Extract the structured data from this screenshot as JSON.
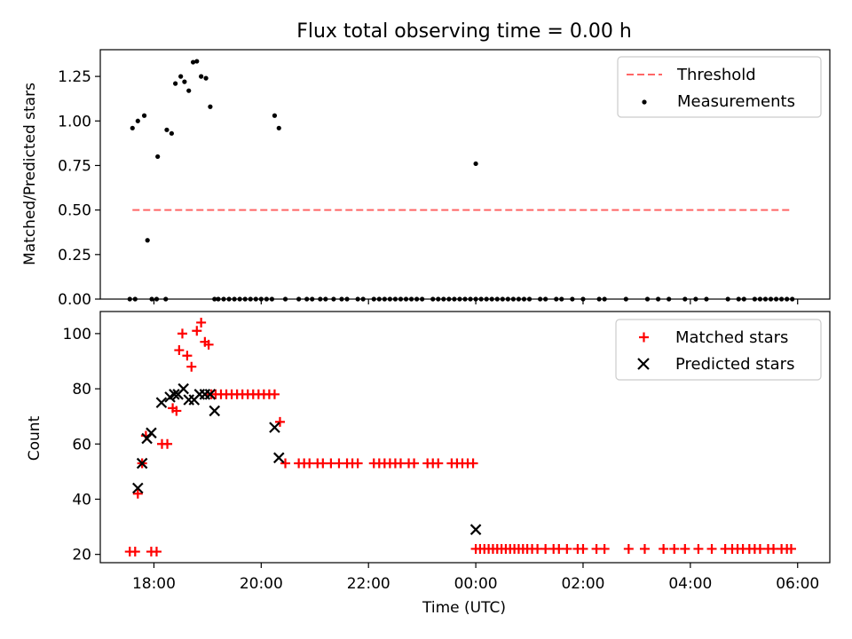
{
  "title": "Flux total observing time = 0.00 h",
  "colors": {
    "threshold": "#ff6666",
    "matched": "#ff0000",
    "predicted": "#000000",
    "measurement": "#000000"
  },
  "chart_data": [
    {
      "type": "scatter",
      "ylabel": "Matched/Predicted stars",
      "xlim": [
        17.0,
        30.6
      ],
      "ylim": [
        0.0,
        1.4
      ],
      "xticks": [
        18,
        20,
        22,
        24,
        26,
        28,
        30
      ],
      "yticks": [
        0.0,
        0.25,
        0.5,
        0.75,
        1.0,
        1.25
      ],
      "ytick_labels": [
        "0.00",
        "0.25",
        "0.50",
        "0.75",
        "1.00",
        "1.25"
      ],
      "legend": [
        "Threshold",
        "Measurements"
      ],
      "legend_position": "top-right",
      "threshold": {
        "name": "Threshold",
        "value": 0.5,
        "x_range": [
          17.6,
          29.9
        ]
      },
      "series": [
        {
          "name": "Measurements",
          "x": [
            17.6,
            17.7,
            17.82,
            17.88,
            17.96,
            18.07,
            18.24,
            18.33,
            18.4,
            18.5,
            18.57,
            18.65,
            18.73,
            18.8,
            18.88,
            18.97,
            19.05,
            19.13,
            20.25,
            20.33,
            24.0,
            17.55,
            17.65,
            18.05,
            18.22,
            19.2,
            19.3,
            19.4,
            19.5,
            19.6,
            19.7,
            19.8,
            19.9,
            20.0,
            20.1,
            20.2,
            20.45,
            20.7,
            20.85,
            20.95,
            21.1,
            21.2,
            21.35,
            21.5,
            21.6,
            21.8,
            21.9,
            22.1,
            22.2,
            22.3,
            22.4,
            22.5,
            22.6,
            22.7,
            22.8,
            22.9,
            23.0,
            23.2,
            23.3,
            23.4,
            23.5,
            23.6,
            23.7,
            23.8,
            23.9,
            24.0,
            24.1,
            24.2,
            24.3,
            24.4,
            24.5,
            24.6,
            24.7,
            24.8,
            24.9,
            25.0,
            25.2,
            25.3,
            25.5,
            25.6,
            25.8,
            26.0,
            26.3,
            26.4,
            26.8,
            27.2,
            27.4,
            27.6,
            27.9,
            28.1,
            28.3,
            28.7,
            28.9,
            29.0,
            29.2,
            29.3,
            29.4,
            29.5,
            29.6,
            29.7,
            29.8,
            29.9
          ],
          "y": [
            0.96,
            1.0,
            1.03,
            0.33,
            0.0,
            0.8,
            0.95,
            0.93,
            1.21,
            1.25,
            1.22,
            1.17,
            1.33,
            1.335,
            1.25,
            1.24,
            1.08,
            0.0,
            1.03,
            0.96,
            0.76,
            0.0,
            0.0,
            0.0,
            0.0,
            0.0,
            0.0,
            0.0,
            0.0,
            0.0,
            0.0,
            0.0,
            0.0,
            0.0,
            0.0,
            0.0,
            0.0,
            0.0,
            0.0,
            0.0,
            0.0,
            0.0,
            0.0,
            0.0,
            0.0,
            0.0,
            0.0,
            0.0,
            0.0,
            0.0,
            0.0,
            0.0,
            0.0,
            0.0,
            0.0,
            0.0,
            0.0,
            0.0,
            0.0,
            0.0,
            0.0,
            0.0,
            0.0,
            0.0,
            0.0,
            0.0,
            0.0,
            0.0,
            0.0,
            0.0,
            0.0,
            0.0,
            0.0,
            0.0,
            0.0,
            0.0,
            0.0,
            0.0,
            0.0,
            0.0,
            0.0,
            0.0,
            0.0,
            0.0,
            0.0,
            0.0,
            0.0,
            0.0,
            0.0,
            0.0,
            0.0,
            0.0,
            0.0,
            0.0,
            0.0,
            0.0,
            0.0,
            0.0,
            0.0,
            0.0,
            0.0,
            0.0
          ]
        }
      ]
    },
    {
      "type": "scatter",
      "xlabel": "Time (UTC)",
      "ylabel": "Count",
      "xlim": [
        17.0,
        30.6
      ],
      "ylim": [
        17,
        108
      ],
      "xticks": [
        18,
        20,
        22,
        24,
        26,
        28,
        30
      ],
      "xtick_labels": [
        "18:00",
        "20:00",
        "22:00",
        "00:00",
        "02:00",
        "04:00",
        "06:00"
      ],
      "yticks": [
        20,
        40,
        60,
        80,
        100
      ],
      "ytick_labels": [
        "20",
        "40",
        "60",
        "80",
        "100"
      ],
      "legend": [
        "Matched stars",
        "Predicted stars"
      ],
      "legend_position": "top-right",
      "series": [
        {
          "name": "Matched stars",
          "marker": "+",
          "x": [
            17.55,
            17.65,
            17.7,
            17.78,
            17.85,
            17.95,
            18.05,
            18.15,
            18.25,
            18.35,
            18.42,
            18.47,
            18.53,
            18.62,
            18.7,
            18.8,
            18.88,
            18.95,
            19.02,
            19.07,
            19.15,
            19.25,
            19.35,
            19.45,
            19.55,
            19.65,
            19.75,
            19.85,
            19.95,
            20.05,
            20.15,
            20.25,
            20.35,
            20.45,
            20.7,
            20.8,
            20.9,
            21.05,
            21.15,
            21.3,
            21.45,
            21.6,
            21.7,
            21.8,
            22.1,
            22.2,
            22.3,
            22.4,
            22.5,
            22.6,
            22.75,
            22.85,
            23.1,
            23.2,
            23.3,
            23.55,
            23.65,
            23.75,
            23.85,
            23.95,
            24.0,
            24.08,
            24.16,
            24.24,
            24.32,
            24.4,
            24.48,
            24.56,
            24.64,
            24.72,
            24.8,
            24.88,
            24.96,
            25.05,
            25.15,
            25.3,
            25.45,
            25.55,
            25.7,
            25.9,
            26.0,
            26.25,
            26.4,
            26.85,
            27.15,
            27.5,
            27.7,
            27.9,
            28.15,
            28.4,
            28.65,
            28.78,
            28.88,
            28.98,
            29.1,
            29.2,
            29.3,
            29.45,
            29.55,
            29.7,
            29.8,
            29.88
          ],
          "y": [
            21,
            21,
            42,
            53,
            63,
            21,
            21,
            60,
            60,
            73,
            72,
            94,
            100,
            92,
            88,
            101,
            104,
            97,
            96,
            78,
            78,
            78,
            78,
            78,
            78,
            78,
            78,
            78,
            78,
            78,
            78,
            78,
            68,
            53,
            53,
            53,
            53,
            53,
            53,
            53,
            53,
            53,
            53,
            53,
            53,
            53,
            53,
            53,
            53,
            53,
            53,
            53,
            53,
            53,
            53,
            53,
            53,
            53,
            53,
            53,
            22,
            22,
            22,
            22,
            22,
            22,
            22,
            22,
            22,
            22,
            22,
            22,
            22,
            22,
            22,
            22,
            22,
            22,
            22,
            22,
            22,
            22,
            22,
            22,
            22,
            22,
            22,
            22,
            22,
            22,
            22,
            22,
            22,
            22,
            22,
            22,
            22,
            22,
            22,
            22,
            22,
            22
          ]
        },
        {
          "name": "Predicted stars",
          "marker": "x",
          "x": [
            17.7,
            17.78,
            17.87,
            17.95,
            18.14,
            18.3,
            18.38,
            18.45,
            18.55,
            18.65,
            18.75,
            18.85,
            18.95,
            19.05,
            19.13,
            20.25,
            20.33,
            24.0
          ],
          "y": [
            44,
            53,
            62,
            64,
            75,
            77,
            78,
            78,
            80,
            76,
            76,
            78,
            78,
            78,
            72,
            66,
            55,
            29
          ]
        }
      ]
    }
  ]
}
